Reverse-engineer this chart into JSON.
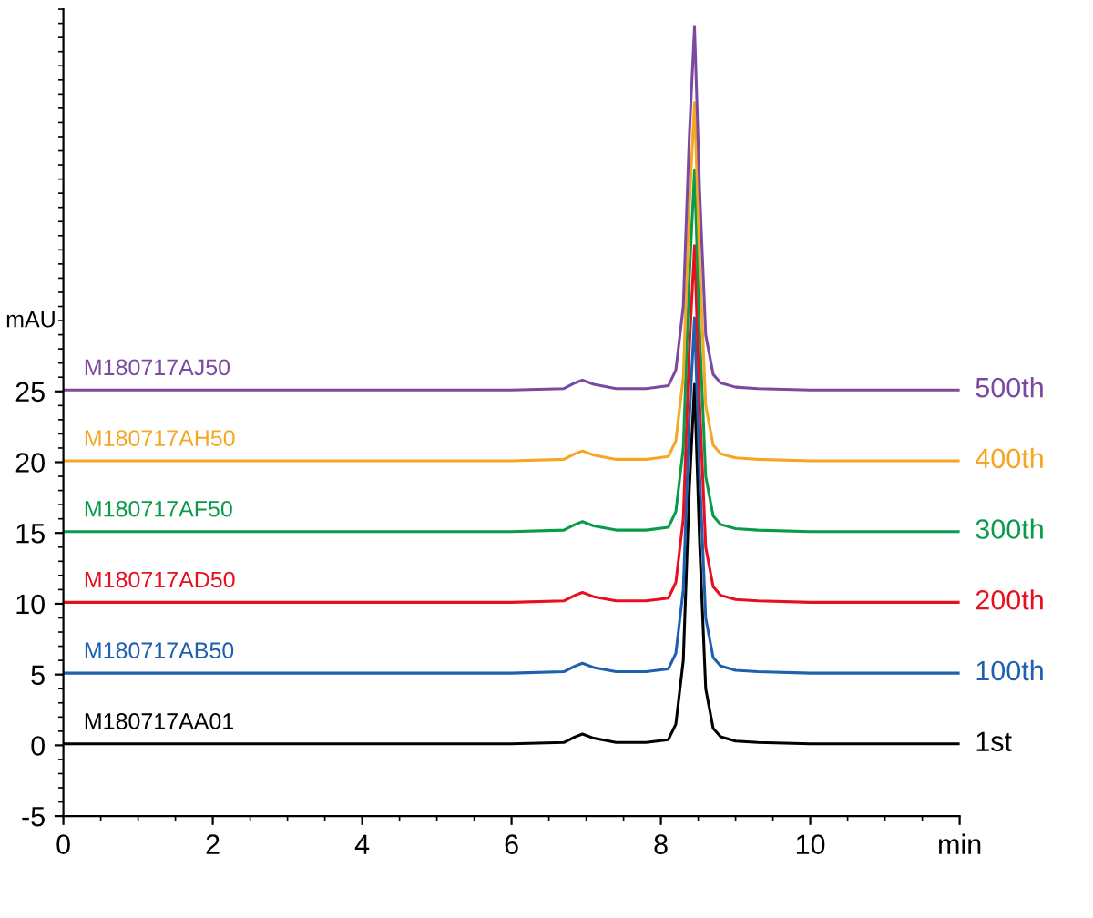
{
  "chart_data": {
    "type": "line",
    "ylabel": "mAU",
    "x": [
      0,
      2,
      4,
      6,
      6.7,
      6.85,
      6.95,
      7.1,
      7.4,
      7.8,
      8.1,
      8.2,
      8.3,
      8.38,
      8.45,
      8.52,
      8.6,
      8.7,
      8.8,
      9.0,
      9.3,
      10,
      12
    ],
    "series": [
      {
        "name": "1st",
        "color": "#000000",
        "values": [
          0.1,
          0.1,
          0.1,
          0.1,
          0.2,
          0.6,
          0.8,
          0.5,
          0.2,
          0.2,
          0.4,
          1.5,
          6,
          18,
          25.5,
          14,
          4,
          1.2,
          0.6,
          0.3,
          0.2,
          0.1,
          0.1
        ]
      },
      {
        "name": "100th",
        "color": "#1f5fb0",
        "values": [
          5.1,
          5.1,
          5.1,
          5.1,
          5.2,
          5.6,
          5.8,
          5.5,
          5.2,
          5.2,
          5.4,
          6.5,
          11,
          23,
          30.2,
          19,
          9,
          6.2,
          5.6,
          5.3,
          5.2,
          5.1,
          5.1
        ]
      },
      {
        "name": "200th",
        "color": "#e8101f",
        "values": [
          10.1,
          10.1,
          10.1,
          10.1,
          10.2,
          10.6,
          10.8,
          10.5,
          10.2,
          10.2,
          10.4,
          11.5,
          16,
          28,
          35.3,
          24,
          14,
          11.2,
          10.6,
          10.3,
          10.2,
          10.1,
          10.1
        ]
      },
      {
        "name": "300th",
        "color": "#0a9b4a",
        "values": [
          15.1,
          15.1,
          15.1,
          15.1,
          15.2,
          15.6,
          15.8,
          15.5,
          15.2,
          15.2,
          15.4,
          16.5,
          21,
          33,
          40.6,
          29,
          19,
          16.2,
          15.6,
          15.3,
          15.2,
          15.1,
          15.1
        ]
      },
      {
        "name": "400th",
        "color": "#f5a623",
        "values": [
          20.1,
          20.1,
          20.1,
          20.1,
          20.2,
          20.6,
          20.8,
          20.5,
          20.2,
          20.2,
          20.4,
          21.5,
          26,
          38,
          45.4,
          34,
          24,
          21.2,
          20.6,
          20.3,
          20.2,
          20.1,
          20.1
        ]
      },
      {
        "name": "500th",
        "color": "#7b4aa0",
        "values": [
          25.1,
          25.1,
          25.1,
          25.1,
          25.2,
          25.6,
          25.8,
          25.5,
          25.2,
          25.2,
          25.4,
          26.5,
          31,
          43,
          50.8,
          39,
          29,
          26.2,
          25.6,
          25.3,
          25.2,
          25.1,
          25.1
        ]
      }
    ],
    "annotations": [
      "M180717AA01",
      "M180717AB50",
      "M180717AD50",
      "M180717AF50",
      "M180717AH50",
      "M180717AJ50"
    ],
    "xlim": [
      0,
      12
    ],
    "ylim": [
      -5,
      52
    ],
    "xticks": [
      0,
      2,
      4,
      6,
      8,
      10,
      {
        "value": 12,
        "label": "min"
      }
    ],
    "yticks": [
      -5,
      0,
      5,
      10,
      15,
      20,
      25
    ],
    "grid": false,
    "legend": false,
    "marker": "none",
    "line_style": "solid"
  }
}
